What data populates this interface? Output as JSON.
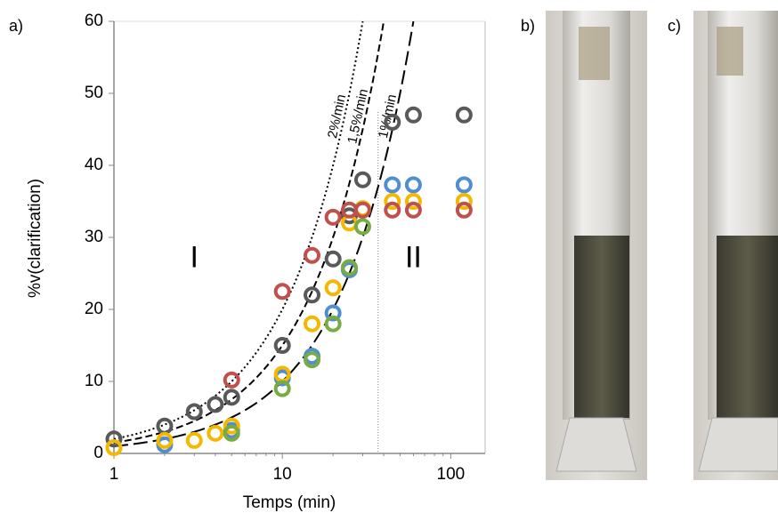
{
  "chart_data": {
    "type": "scatter",
    "panel_label": "a)",
    "x_label": "Temps (min)",
    "y_label": "%v(clarification)",
    "xscale": "log",
    "xlim": [
      1,
      160
    ],
    "xticks": [
      1,
      10,
      100
    ],
    "ylim": [
      0,
      60
    ],
    "yticks": [
      0,
      10,
      20,
      30,
      40,
      50,
      60
    ],
    "series": [
      {
        "color": "#595959",
        "x": [
          1,
          2,
          3,
          4,
          5,
          10,
          15,
          20,
          25,
          30,
          45,
          60,
          120
        ],
        "values": [
          2,
          3.8,
          5.8,
          6.8,
          7.8,
          15,
          22,
          27,
          33,
          38,
          46,
          47,
          47
        ]
      },
      {
        "color": "#4f8fcf",
        "x": [
          2,
          5,
          10,
          15,
          20,
          25,
          45,
          60,
          120
        ],
        "values": [
          1.2,
          3.2,
          10.5,
          13.5,
          19.5,
          25.5,
          37.3,
          37.3,
          37.3
        ]
      },
      {
        "color": "#f5b800",
        "x": [
          1,
          2,
          3,
          4,
          5,
          10,
          15,
          20,
          25,
          30,
          45,
          60,
          120
        ],
        "values": [
          0.8,
          1.8,
          1.8,
          2.8,
          3.8,
          11,
          18,
          23,
          32,
          34,
          35,
          35,
          35
        ]
      },
      {
        "color": "#77ab43",
        "x": [
          5,
          10,
          15,
          20,
          25,
          30
        ],
        "values": [
          2.8,
          9,
          13,
          18,
          25.8,
          31.5
        ]
      },
      {
        "color": "#c0504d",
        "x": [
          5,
          10,
          15,
          20,
          25,
          30,
          45,
          60,
          120
        ],
        "values": [
          10.2,
          22.5,
          27.5,
          32.8,
          33.8,
          33.8,
          33.8,
          33.8,
          33.8
        ]
      }
    ],
    "curves": [
      {
        "label": "2%/min",
        "rate": 2,
        "style": "dotted"
      },
      {
        "label": "1,5%/min",
        "rate": 1.5,
        "style": "dashed"
      },
      {
        "label": "1%/min",
        "rate": 1,
        "style": "longdash"
      }
    ],
    "divider_x": 37,
    "regions": [
      {
        "label": "I",
        "x": 3,
        "y": 27
      },
      {
        "label": "II",
        "x": 60,
        "y": 27
      }
    ],
    "photo_labels": [
      "b)",
      "c)"
    ]
  }
}
